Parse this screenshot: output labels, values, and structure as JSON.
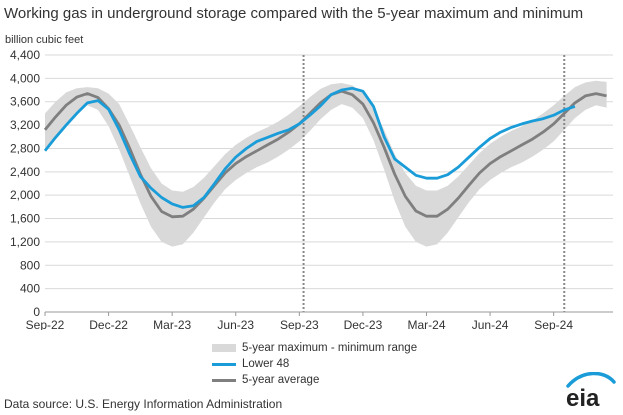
{
  "title": "Working gas in underground  storage compared with the 5-year maximum and minimum",
  "y_axis_label": "billion cubic feet",
  "source": "Data source:  U.S. Energy Information Administration",
  "logo_text": "eia",
  "legend": {
    "range": "5-year maximum - minimum range",
    "lower48": "Lower 48",
    "avg": "5-year average"
  },
  "colors": {
    "lower48": "#1a9cd8",
    "avg": "#7f7f7f",
    "band": "#d9d9d9",
    "grid": "#d9d9d9",
    "marker": "#888888"
  },
  "chart_data": {
    "type": "line",
    "x_unit": "months since Sep-22",
    "xlim": [
      0,
      26.8
    ],
    "ylim": [
      0,
      4400
    ],
    "y_ticks": [
      0,
      400,
      800,
      1200,
      1600,
      2000,
      2400,
      2800,
      3200,
      3600,
      4000,
      4400
    ],
    "y_tick_labels": [
      "0",
      "400",
      "800",
      "1,200",
      "1,600",
      "2,000",
      "2,400",
      "2,800",
      "3,200",
      "3,600",
      "4,000",
      "4,400"
    ],
    "x_ticks": [
      0,
      3,
      6,
      9,
      12,
      15,
      18,
      21,
      24
    ],
    "x_tick_labels": [
      "Sep-22",
      "Dec-22",
      "Mar-23",
      "Jun-23",
      "Sep-23",
      "Dec-23",
      "Mar-24",
      "Jun-24",
      "Sep-24"
    ],
    "vertical_markers": [
      12.2,
      24.5
    ],
    "grid": "horizontal",
    "legend_position": "bottom-center",
    "series": [
      {
        "name": "Lower 48",
        "x": [
          0,
          0.5,
          1,
          1.5,
          2,
          2.5,
          3,
          3.5,
          4,
          4.5,
          5,
          5.5,
          6,
          6.5,
          7,
          7.5,
          8,
          8.5,
          9,
          9.5,
          10,
          10.5,
          11,
          11.5,
          12,
          12.5,
          13,
          13.5,
          14,
          14.5,
          15,
          15.5,
          16,
          16.5,
          17,
          17.5,
          18,
          18.5,
          19,
          19.5,
          20,
          20.5,
          21,
          21.5,
          22,
          22.5,
          23,
          23.5,
          24,
          24.5,
          25
        ],
        "y": [
          2760,
          2990,
          3200,
          3400,
          3580,
          3620,
          3470,
          3120,
          2700,
          2320,
          2120,
          1960,
          1850,
          1790,
          1820,
          1960,
          2200,
          2450,
          2650,
          2800,
          2920,
          2990,
          3060,
          3120,
          3220,
          3370,
          3530,
          3720,
          3800,
          3830,
          3780,
          3520,
          3000,
          2620,
          2480,
          2340,
          2290,
          2290,
          2350,
          2480,
          2650,
          2820,
          2970,
          3080,
          3160,
          3220,
          3270,
          3310,
          3370,
          3460,
          3520
        ]
      },
      {
        "name": "5-year average",
        "x": [
          0,
          0.5,
          1,
          1.5,
          2,
          2.5,
          3,
          3.5,
          4,
          4.5,
          5,
          5.5,
          6,
          6.5,
          7,
          7.5,
          8,
          8.5,
          9,
          9.5,
          10,
          10.5,
          11,
          11.5,
          12,
          12.5,
          13,
          13.5,
          14,
          14.5,
          15,
          15.5,
          16,
          16.5,
          17,
          17.5,
          18,
          18.5,
          19,
          19.5,
          20,
          20.5,
          21,
          21.5,
          22,
          22.5,
          23,
          23.5,
          24,
          24.5,
          25,
          25.5,
          26,
          26.5
        ],
        "y": [
          3120,
          3340,
          3540,
          3680,
          3740,
          3670,
          3480,
          3200,
          2800,
          2360,
          1980,
          1720,
          1630,
          1640,
          1760,
          1950,
          2170,
          2380,
          2540,
          2660,
          2760,
          2860,
          2960,
          3080,
          3220,
          3400,
          3580,
          3720,
          3780,
          3720,
          3560,
          3240,
          2820,
          2360,
          1980,
          1730,
          1640,
          1640,
          1760,
          1950,
          2170,
          2380,
          2540,
          2660,
          2760,
          2860,
          2960,
          3080,
          3220,
          3400,
          3580,
          3700,
          3740,
          3700
        ]
      },
      {
        "name": "5-year maximum - minimum range",
        "x": [
          0,
          0.5,
          1,
          1.5,
          2,
          2.5,
          3,
          3.5,
          4,
          4.5,
          5,
          5.5,
          6,
          6.5,
          7,
          7.5,
          8,
          8.5,
          9,
          9.5,
          10,
          10.5,
          11,
          11.5,
          12,
          12.5,
          13,
          13.5,
          14,
          14.5,
          15,
          15.5,
          16,
          16.5,
          17,
          17.5,
          18,
          18.5,
          19,
          19.5,
          20,
          20.5,
          21,
          21.5,
          22,
          22.5,
          23,
          23.5,
          24,
          24.5,
          25,
          25.5,
          26,
          26.5
        ],
        "upper": [
          3400,
          3600,
          3760,
          3830,
          3850,
          3830,
          3740,
          3560,
          3200,
          2820,
          2460,
          2200,
          2080,
          2060,
          2140,
          2300,
          2500,
          2700,
          2860,
          2980,
          3080,
          3160,
          3260,
          3380,
          3520,
          3680,
          3820,
          3900,
          3920,
          3880,
          3760,
          3500,
          3120,
          2700,
          2380,
          2160,
          2080,
          2080,
          2160,
          2320,
          2520,
          2720,
          2880,
          3000,
          3100,
          3180,
          3280,
          3400,
          3540,
          3700,
          3850,
          3930,
          3960,
          3940
        ],
        "lower": [
          2780,
          3000,
          3220,
          3420,
          3540,
          3460,
          3180,
          2780,
          2320,
          1860,
          1460,
          1200,
          1120,
          1160,
          1360,
          1620,
          1880,
          2100,
          2260,
          2380,
          2480,
          2560,
          2660,
          2780,
          2920,
          3100,
          3300,
          3460,
          3560,
          3500,
          3320,
          2940,
          2440,
          1900,
          1460,
          1200,
          1120,
          1160,
          1360,
          1620,
          1880,
          2100,
          2260,
          2380,
          2480,
          2560,
          2660,
          2780,
          2920,
          3120,
          3320,
          3460,
          3540,
          3500
        ]
      }
    ]
  }
}
